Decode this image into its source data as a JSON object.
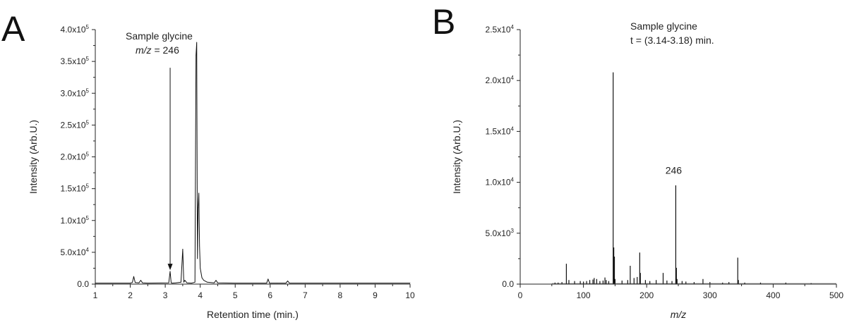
{
  "chart_data": [
    {
      "panel": "A",
      "type": "line",
      "xlabel": "Retention time (min.)",
      "ylabel": "Intensity (Arb.U.)",
      "xlim": [
        1,
        10
      ],
      "ylim": [
        0,
        400000
      ],
      "xticks": [
        1,
        2,
        3,
        4,
        5,
        6,
        7,
        8,
        9,
        10
      ],
      "yticks": [
        {
          "value": 0,
          "base": "0.0",
          "exp": ""
        },
        {
          "value": 50000,
          "base": "5.0x10",
          "exp": "4"
        },
        {
          "value": 100000,
          "base": "1.0x10",
          "exp": "5"
        },
        {
          "value": 150000,
          "base": "1.5x10",
          "exp": "5"
        },
        {
          "value": 200000,
          "base": "2.0x10",
          "exp": "5"
        },
        {
          "value": 250000,
          "base": "2.5x10",
          "exp": "5"
        },
        {
          "value": 300000,
          "base": "3.0x10",
          "exp": "5"
        },
        {
          "value": 350000,
          "base": "3.5x10",
          "exp": "5"
        },
        {
          "value": 400000,
          "base": "4.0x10",
          "exp": "5"
        }
      ],
      "annotation": {
        "line1": "Sample glycine",
        "line2_italic": "m/z",
        "line2_rest": " = 246"
      },
      "arrow": {
        "x": 3.14,
        "from_y": 340000,
        "to_y": 22000
      },
      "x": [
        1.0,
        2.0,
        2.06,
        2.1,
        2.14,
        2.25,
        2.3,
        2.35,
        2.5,
        3.1,
        3.14,
        3.17,
        3.2,
        3.3,
        3.45,
        3.5,
        3.53,
        3.56,
        3.62,
        3.75,
        3.85,
        3.88,
        3.9,
        3.92,
        3.94,
        3.96,
        3.98,
        4.0,
        4.05,
        4.1,
        4.2,
        4.4,
        4.45,
        4.5,
        5.0,
        5.9,
        5.94,
        5.98,
        6.2,
        6.45,
        6.5,
        6.55,
        7.0,
        8.0,
        9.0,
        10.0
      ],
      "y": [
        1500,
        1500,
        2500,
        12000,
        2500,
        2000,
        6000,
        2000,
        1500,
        2000,
        20000,
        2000,
        1500,
        2000,
        3000,
        55000,
        3000,
        6000,
        2000,
        1500,
        3000,
        360000,
        380000,
        40000,
        120000,
        143000,
        60000,
        25000,
        10000,
        6000,
        3000,
        2000,
        6000,
        2000,
        1500,
        1500,
        8000,
        1500,
        1500,
        1500,
        5000,
        1500,
        1500,
        1500,
        1500,
        1500
      ]
    },
    {
      "panel": "B",
      "type": "bar",
      "xlabel": "m/z",
      "ylabel": "Intensity (Arb.U.)",
      "xlim": [
        0,
        500
      ],
      "ylim": [
        0,
        25000
      ],
      "xticks": [
        0,
        100,
        200,
        300,
        400,
        500
      ],
      "yticks": [
        {
          "value": 0,
          "base": "0.0",
          "exp": ""
        },
        {
          "value": 5000,
          "base": "5.0x10",
          "exp": "3"
        },
        {
          "value": 10000,
          "base": "1.0x10",
          "exp": "4"
        },
        {
          "value": 15000,
          "base": "1.5x10",
          "exp": "4"
        },
        {
          "value": 20000,
          "base": "2.0x10",
          "exp": "4"
        },
        {
          "value": 25000,
          "base": "2.5x10",
          "exp": "4"
        }
      ],
      "annotation": {
        "line1": "Sample glycine",
        "line2": "t = (3.14-3.18) min."
      },
      "peak_label": {
        "text": "246",
        "x": 246,
        "y": 10500
      },
      "x": [
        55,
        60,
        66,
        73,
        77,
        86,
        95,
        100,
        105,
        110,
        115,
        117,
        121,
        126,
        131,
        134,
        136,
        140,
        147,
        148,
        149,
        150,
        161,
        170,
        174,
        180,
        185,
        189,
        190,
        198,
        205,
        215,
        226,
        232,
        240,
        246,
        247,
        248,
        256,
        262,
        275,
        289,
        300,
        320,
        330,
        344,
        345,
        355,
        380,
        420,
        460
      ],
      "values": [
        150,
        150,
        200,
        2000,
        400,
        300,
        300,
        250,
        300,
        400,
        450,
        600,
        500,
        300,
        350,
        650,
        400,
        300,
        20800,
        3600,
        2700,
        500,
        350,
        400,
        1800,
        600,
        700,
        3100,
        1100,
        400,
        300,
        400,
        1100,
        350,
        300,
        9700,
        1600,
        500,
        300,
        250,
        200,
        500,
        200,
        150,
        200,
        2600,
        400,
        150,
        150,
        150,
        100
      ]
    }
  ]
}
